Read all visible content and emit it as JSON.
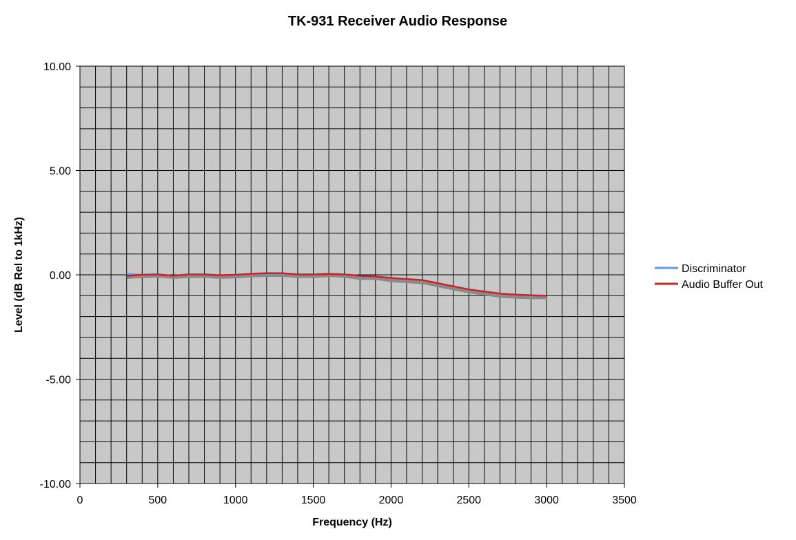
{
  "chart_data": {
    "type": "line",
    "title": "TK-931 Receiver Audio Response",
    "xlabel": "Frequency (Hz)",
    "ylabel": "Level (dB Rel to 1kHz)",
    "xlim": [
      0,
      3500
    ],
    "ylim": [
      -10,
      10
    ],
    "x_major_step": 500,
    "x_minor_step": 100,
    "y_major_step": 5,
    "y_minor_step": 1,
    "x_tick_labels": [
      "0",
      "500",
      "1000",
      "1500",
      "2000",
      "2500",
      "3000",
      "3500"
    ],
    "y_tick_labels": [
      "10.00",
      "5.00",
      "0.00",
      "-5.00",
      "-10.00"
    ],
    "grid": true,
    "legend_position": "right",
    "plot_background": "#c8c8c8",
    "series": [
      {
        "name": "Discriminator",
        "color": "#5b9bea",
        "x": [
          300,
          400,
          500,
          600,
          700,
          800,
          900,
          1000,
          1100,
          1200,
          1300,
          1400,
          1500,
          1600,
          1700,
          1800,
          1900,
          2000,
          2100,
          2200,
          2300,
          2400,
          2500,
          2600,
          2700,
          2800,
          2900,
          3000
        ],
        "y": [
          0.05,
          0.0,
          0.02,
          -0.05,
          0.0,
          0.0,
          -0.05,
          -0.02,
          0.03,
          0.05,
          0.05,
          0.0,
          0.0,
          0.05,
          0.0,
          -0.1,
          -0.1,
          -0.2,
          -0.25,
          -0.3,
          -0.45,
          -0.6,
          -0.75,
          -0.85,
          -0.95,
          -1.0,
          -1.02,
          -1.02
        ]
      },
      {
        "name": "Audio Buffer Out",
        "color": "#cc2222",
        "x": [
          300,
          400,
          500,
          600,
          700,
          800,
          900,
          1000,
          1100,
          1200,
          1300,
          1400,
          1500,
          1600,
          1700,
          1800,
          1900,
          2000,
          2100,
          2200,
          2300,
          2400,
          2500,
          2600,
          2700,
          2800,
          2900,
          3000
        ],
        "y": [
          -0.05,
          0.0,
          0.02,
          -0.05,
          0.02,
          0.02,
          -0.02,
          0.0,
          0.05,
          0.08,
          0.08,
          0.02,
          0.02,
          0.05,
          0.02,
          -0.05,
          -0.08,
          -0.15,
          -0.2,
          -0.25,
          -0.4,
          -0.55,
          -0.7,
          -0.8,
          -0.9,
          -0.95,
          -0.98,
          -1.0
        ]
      }
    ]
  }
}
